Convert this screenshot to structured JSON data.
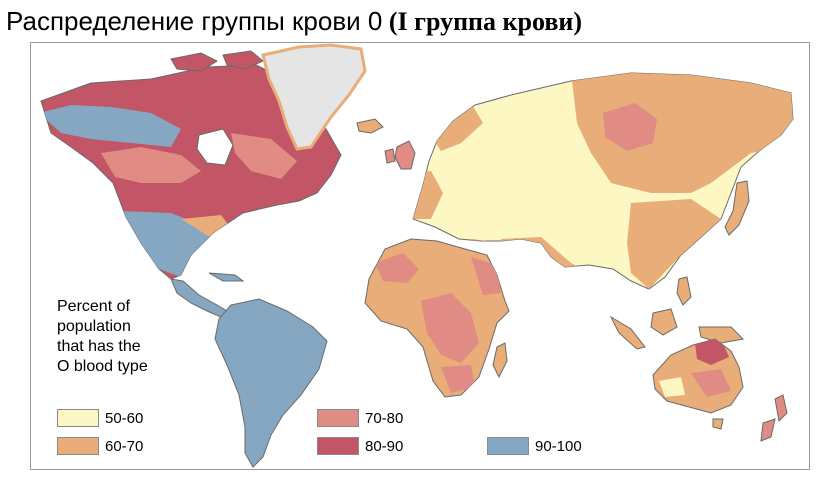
{
  "title": {
    "main": "Распределение группы крови 0",
    "suffix": "(I группа крови)"
  },
  "legend": {
    "title": "Percent of\npopulation\nthat has the\nO blood type",
    "items": [
      {
        "label": "50-60",
        "color": "#fdf7c3"
      },
      {
        "label": "60-70",
        "color": "#e8ad78"
      },
      {
        "label": "70-80",
        "color": "#e08b84"
      },
      {
        "label": "80-90",
        "color": "#c25566"
      },
      {
        "label": "90-100",
        "color": "#86a7c2"
      }
    ]
  },
  "map": {
    "ocean_color": "#ffffff",
    "outline_color": "#6a6a6a",
    "greenland_color": "#e5e5e5",
    "regions": [
      {
        "name": "north-america",
        "class": "80-90"
      },
      {
        "name": "alaska-canada-north",
        "class": "90-100"
      },
      {
        "name": "mexico-central-america",
        "class": "90-100"
      },
      {
        "name": "south-america",
        "class": "90-100"
      },
      {
        "name": "greenland",
        "class": "no-data"
      },
      {
        "name": "europe-russia-asia",
        "class": "50-60"
      },
      {
        "name": "siberia",
        "class": "60-70"
      },
      {
        "name": "africa",
        "class": "60-70"
      },
      {
        "name": "arabia",
        "class": "70-80"
      },
      {
        "name": "southeast-asia",
        "class": "60-70"
      },
      {
        "name": "australia",
        "class": "60-70"
      },
      {
        "name": "new-zealand",
        "class": "70-80"
      }
    ]
  }
}
